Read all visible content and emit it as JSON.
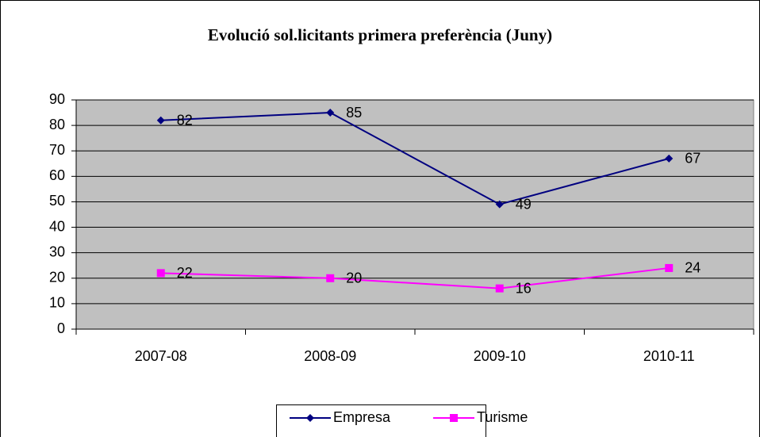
{
  "chart_data": {
    "type": "line",
    "title": "Evolució sol.licitants primera preferència (Juny)",
    "categories": [
      "2007-08",
      "2008-09",
      "2009-10",
      "2010-11"
    ],
    "series": [
      {
        "name": "Empresa",
        "color": "#000080",
        "marker": "diamond",
        "values": [
          82,
          85,
          49,
          67
        ]
      },
      {
        "name": "Turisme",
        "color": "#ff00ff",
        "marker": "square",
        "values": [
          22,
          20,
          16,
          24
        ]
      }
    ],
    "ylim": [
      0,
      90
    ],
    "yticks": [
      0,
      10,
      20,
      30,
      40,
      50,
      60,
      70,
      80,
      90
    ],
    "grid": true,
    "legend": "bottom",
    "data_labels": true
  }
}
